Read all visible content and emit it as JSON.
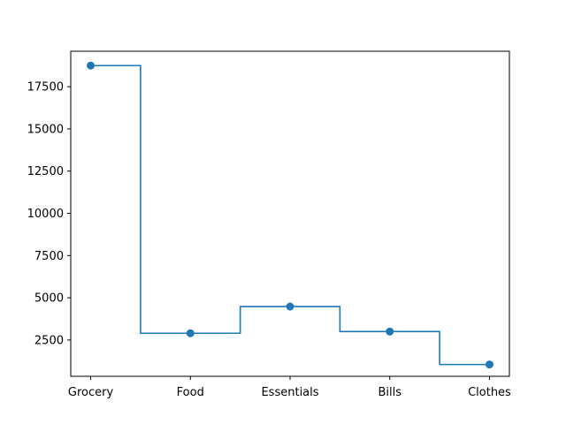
{
  "chart_data": {
    "type": "line",
    "step": "mid",
    "markers": true,
    "categories": [
      "Grocery",
      "Food",
      "Essentials",
      "Bills",
      "Clothes"
    ],
    "values": [
      18750,
      2900,
      4480,
      3000,
      1050
    ],
    "ylim": [
      350,
      19600
    ],
    "yticks": [
      2500,
      5000,
      7500,
      10000,
      12500,
      15000,
      17500
    ],
    "title": "",
    "xlabel": "",
    "ylabel": "",
    "grid": false,
    "color": "#1f77b4"
  }
}
